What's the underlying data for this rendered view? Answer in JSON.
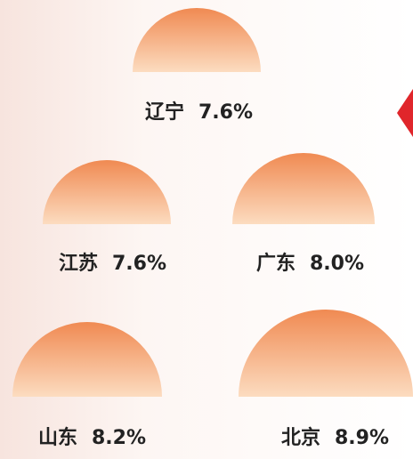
{
  "chart_data": {
    "type": "semicircle",
    "categories": [
      "辽宁",
      "江苏",
      "广东",
      "山东",
      "北京"
    ],
    "values": [
      7.6,
      7.6,
      8.0,
      8.2,
      8.9
    ],
    "value_labels": [
      "7.6%",
      "7.6%",
      "8.0%",
      "8.2%",
      "8.9%"
    ],
    "color": "#f08a52"
  }
}
